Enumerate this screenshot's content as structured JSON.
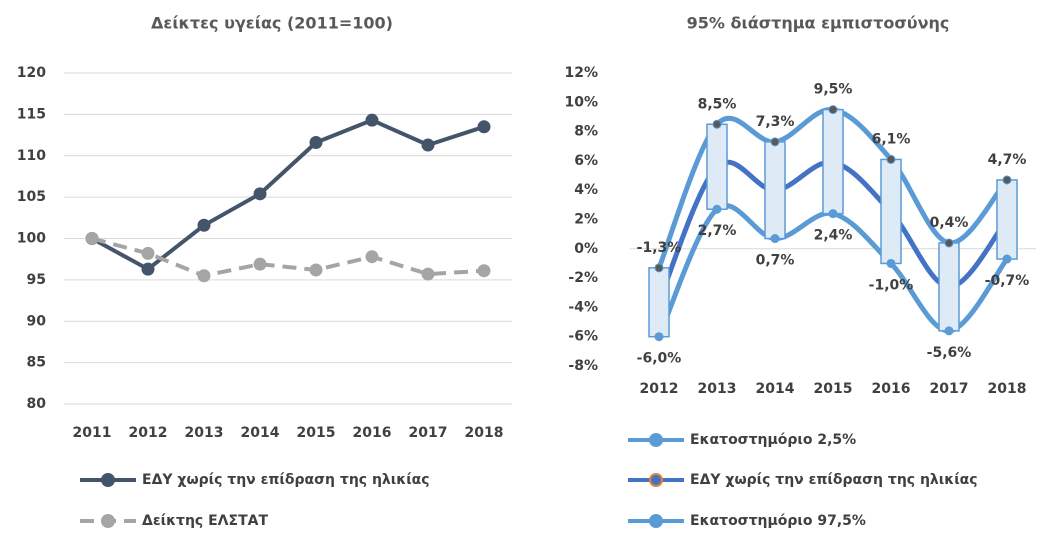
{
  "chart_data": [
    {
      "type": "line",
      "title": "Δείκτες υγείας (2011=100)",
      "categories": [
        "2011",
        "2012",
        "2013",
        "2014",
        "2015",
        "2016",
        "2017",
        "2018"
      ],
      "series": [
        {
          "name": "ΕΔΥ χωρίς την επίδραση της ηλικίας",
          "color": "#44546a",
          "dashed": false,
          "markers": true,
          "values": [
            100,
            96.3,
            101.6,
            105.4,
            111.6,
            114.3,
            111.3,
            113.5
          ]
        },
        {
          "name": "Δείκτης ΕΛΣΤΑΤ",
          "color": "#a5a5a5",
          "dashed": true,
          "markers": true,
          "values": [
            100,
            98.2,
            95.5,
            96.9,
            96.2,
            97.8,
            95.7,
            96.1
          ]
        }
      ],
      "ylim": [
        80,
        120
      ],
      "yticks": [
        80,
        85,
        90,
        95,
        100,
        105,
        110,
        115,
        120
      ],
      "grid": true
    },
    {
      "type": "line",
      "title": "95% διάστημα εμπιστοσύνης",
      "categories": [
        "2012",
        "2013",
        "2014",
        "2015",
        "2016",
        "2017",
        "2018"
      ],
      "band_boxes": true,
      "smooth": true,
      "series": [
        {
          "name": "Εκατοστημόριο 2,5%",
          "color": "#5b9bd5",
          "dashed": false,
          "markers": true,
          "values": [
            -6.0,
            2.7,
            0.7,
            2.4,
            -1.0,
            -5.6,
            -0.7
          ],
          "value_labels": [
            "-6,0%",
            "2,7%",
            "0,7%",
            "2,4%",
            "-1,0%",
            "-5,6%",
            "-0,7%"
          ]
        },
        {
          "name": "ΕΔΥ χωρίς την επίδραση της ηλικίας",
          "color": "#4472c4",
          "dashed": false,
          "markers": false,
          "values": [
            -3.6,
            5.6,
            4.0,
            5.9,
            2.5,
            -2.6,
            2.0
          ]
        },
        {
          "name": "Εκατοστημόριο 97,5%",
          "color": "#5b9bd5",
          "dashed": false,
          "markers": true,
          "values": [
            -1.3,
            8.5,
            7.3,
            9.5,
            6.1,
            0.4,
            4.7
          ],
          "value_labels": [
            "-1,3%",
            "8,5%",
            "7,3%",
            "9,5%",
            "6,1%",
            "0,4%",
            "4,7%"
          ]
        }
      ],
      "ylim": [
        -8,
        12
      ],
      "yticks": [
        {
          "value": -8,
          "label": "-8%"
        },
        {
          "value": -6,
          "label": "-6%"
        },
        {
          "value": -4,
          "label": "-4%"
        },
        {
          "value": -2,
          "label": "-2%"
        },
        {
          "value": 0,
          "label": "0%"
        },
        {
          "value": 2,
          "label": "2%"
        },
        {
          "value": 4,
          "label": "4%"
        },
        {
          "value": 6,
          "label": "6%"
        },
        {
          "value": 8,
          "label": "8%"
        },
        {
          "value": 10,
          "label": "10%"
        },
        {
          "value": 12,
          "label": "12%"
        }
      ],
      "grid": false
    }
  ]
}
